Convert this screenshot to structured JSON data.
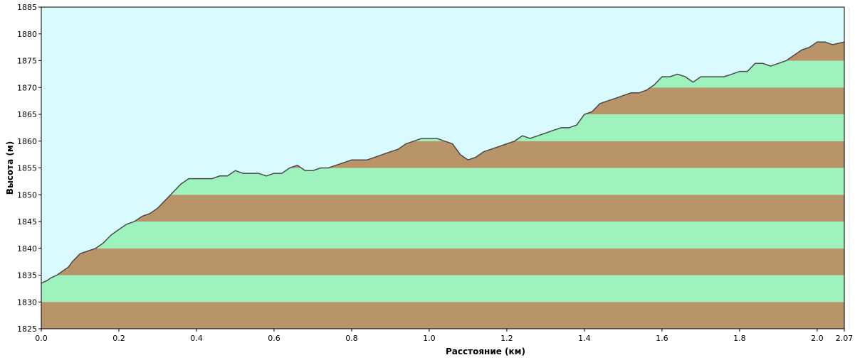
{
  "colors": {
    "sky": "#d9fbff",
    "band_brown": "#b99468",
    "band_green": "#9ef2bd",
    "profile_line": "#4a4a4a"
  },
  "chart_data": {
    "type": "area",
    "title": "",
    "xlabel": "Расстояние  (км)",
    "ylabel": "Высота (м)",
    "xlim": [
      0.0,
      2.07
    ],
    "ylim": [
      1825,
      1885
    ],
    "x_ticks": [
      "0.0",
      "0.2",
      "0.4",
      "0.6",
      "0.8",
      "1.0",
      "1.2",
      "1.4",
      "1.6",
      "1.8",
      "2.0",
      "2.07"
    ],
    "x_tick_values": [
      0.0,
      0.2,
      0.4,
      0.6,
      0.8,
      1.0,
      1.2,
      1.4,
      1.6,
      1.8,
      2.0,
      2.07
    ],
    "y_ticks": [
      "1825",
      "1830",
      "1835",
      "1840",
      "1845",
      "1850",
      "1855",
      "1860",
      "1865",
      "1870",
      "1875",
      "1880",
      "1885"
    ],
    "y_tick_values": [
      1825,
      1830,
      1835,
      1840,
      1845,
      1850,
      1855,
      1860,
      1865,
      1870,
      1875,
      1880,
      1885
    ],
    "band_interval_m": 5,
    "series": [
      {
        "x": [
          0.0,
          0.015,
          0.025,
          0.04,
          0.05,
          0.06,
          0.07,
          0.08,
          0.1,
          0.12,
          0.14,
          0.16,
          0.18,
          0.2,
          0.22,
          0.24,
          0.26,
          0.28,
          0.3,
          0.32,
          0.34,
          0.36,
          0.38,
          0.4,
          0.42,
          0.44,
          0.46,
          0.48,
          0.5,
          0.52,
          0.54,
          0.56,
          0.58,
          0.6,
          0.62,
          0.64,
          0.66,
          0.68,
          0.7,
          0.72,
          0.74,
          0.76,
          0.78,
          0.8,
          0.82,
          0.84,
          0.86,
          0.88,
          0.9,
          0.92,
          0.94,
          0.96,
          0.98,
          1.0,
          1.02,
          1.04,
          1.06,
          1.08,
          1.1,
          1.12,
          1.14,
          1.16,
          1.18,
          1.2,
          1.22,
          1.24,
          1.26,
          1.28,
          1.3,
          1.32,
          1.34,
          1.36,
          1.38,
          1.4,
          1.42,
          1.44,
          1.46,
          1.48,
          1.5,
          1.52,
          1.54,
          1.56,
          1.58,
          1.6,
          1.62,
          1.64,
          1.66,
          1.68,
          1.7,
          1.72,
          1.74,
          1.76,
          1.78,
          1.8,
          1.82,
          1.84,
          1.86,
          1.88,
          1.9,
          1.92,
          1.94,
          1.96,
          1.98,
          2.0,
          2.02,
          2.04,
          2.07
        ],
        "values": [
          1833.5,
          1834.0,
          1834.5,
          1835.0,
          1835.5,
          1836.0,
          1836.5,
          1837.5,
          1839.0,
          1839.5,
          1840.0,
          1841.0,
          1842.5,
          1843.5,
          1844.5,
          1845.0,
          1846.0,
          1846.5,
          1847.5,
          1849.0,
          1850.5,
          1852.0,
          1853.0,
          1853.0,
          1853.0,
          1853.0,
          1853.5,
          1853.5,
          1854.5,
          1854.0,
          1854.0,
          1854.0,
          1853.5,
          1854.0,
          1854.0,
          1855.0,
          1855.5,
          1854.5,
          1854.5,
          1855.0,
          1855.0,
          1855.5,
          1856.0,
          1856.5,
          1856.5,
          1856.5,
          1857.0,
          1857.5,
          1858.0,
          1858.5,
          1859.5,
          1860.0,
          1860.5,
          1860.5,
          1860.5,
          1860.0,
          1859.5,
          1857.5,
          1856.5,
          1857.0,
          1858.0,
          1858.5,
          1859.0,
          1859.5,
          1860.0,
          1861.0,
          1860.5,
          1861.0,
          1861.5,
          1862.0,
          1862.5,
          1862.5,
          1863.0,
          1865.0,
          1865.5,
          1867.0,
          1867.5,
          1868.0,
          1868.5,
          1869.0,
          1869.0,
          1869.5,
          1870.5,
          1872.0,
          1872.0,
          1872.5,
          1872.0,
          1871.0,
          1872.0,
          1872.0,
          1872.0,
          1872.0,
          1872.5,
          1873.0,
          1873.0,
          1874.5,
          1874.5,
          1874.0,
          1874.5,
          1875.0,
          1876.0,
          1877.0,
          1877.5,
          1878.5,
          1878.5,
          1878.0,
          1878.5
        ]
      }
    ],
    "grid": false,
    "legend": "none"
  }
}
